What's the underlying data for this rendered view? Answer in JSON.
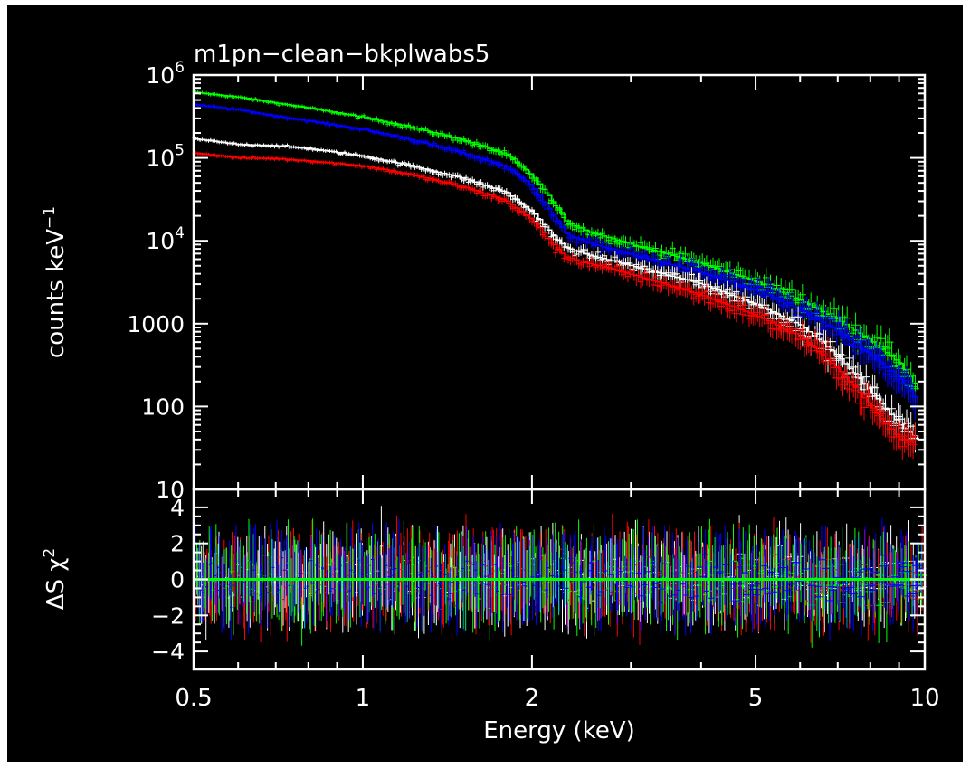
{
  "chart_data": {
    "type": "line",
    "title": "m1pn−clean−bkplwabs5",
    "xlabel": "Energy (keV)",
    "x_scale": "log",
    "xlim": [
      0.5,
      10
    ],
    "x_ticks": [
      {
        "v": 0.5,
        "label": "0.5"
      },
      {
        "v": 1,
        "label": "1"
      },
      {
        "v": 2,
        "label": "2"
      },
      {
        "v": 5,
        "label": "5"
      },
      {
        "v": 10,
        "label": "10"
      }
    ],
    "background_color": "#000000",
    "axis_color": "#ffffff",
    "panels": [
      {
        "id": "spectrum",
        "ylabel": "counts keV",
        "ylabel_exponent": "−1",
        "y_scale": "log",
        "ylim": [
          10,
          1000000
        ],
        "y_ticks": [
          {
            "v": 1000000,
            "label": "10",
            "sup": "6"
          },
          {
            "v": 100000,
            "label": "10",
            "sup": "5"
          },
          {
            "v": 10000,
            "label": "10",
            "sup": "4"
          },
          {
            "v": 1000,
            "label": "1000",
            "sup": ""
          },
          {
            "v": 100,
            "label": "100",
            "sup": ""
          },
          {
            "v": 10,
            "label": "10",
            "sup": ""
          }
        ],
        "x": [
          0.5,
          0.6,
          0.7,
          0.8,
          1.0,
          1.2,
          1.5,
          1.8,
          2.0,
          2.1,
          2.2,
          2.3,
          2.5,
          3.0,
          3.5,
          4.0,
          5.0,
          6.0,
          7.0,
          8.0,
          9.0,
          9.7
        ],
        "series": [
          {
            "color": "#00ff00",
            "values": [
              620000,
              540000,
              460000,
              400000,
              310000,
              240000,
              165000,
              110000,
              60000,
              40000,
              26000,
              17000,
              13000,
              9000,
              6800,
              5300,
              3200,
              1900,
              1100,
              620,
              330,
              160
            ]
          },
          {
            "color": "#0000ff",
            "values": [
              440000,
              380000,
              320000,
              280000,
              220000,
              170000,
              115000,
              78000,
              45000,
              28000,
              18000,
              12000,
              9500,
              6800,
              5200,
              4100,
              2500,
              1450,
              800,
              420,
              220,
              110
            ]
          },
          {
            "color": "#ffffff",
            "values": [
              170000,
              145000,
              140000,
              130000,
              105000,
              82000,
              57000,
              38000,
              22000,
              15000,
              10500,
              8200,
              6800,
              5000,
              3800,
              3000,
              1700,
              950,
              400,
              150,
              60,
              40
            ]
          },
          {
            "color": "#ff0000",
            "values": [
              115000,
              100000,
              98000,
              92000,
              80000,
              64000,
              45000,
              30000,
              17500,
              12000,
              8000,
              6300,
              5400,
              3900,
              2900,
              2200,
              1250,
              700,
              280,
              100,
              40,
              38
            ]
          }
        ]
      },
      {
        "id": "residuals",
        "ylabel": "ΔS χ",
        "ylabel_exponent": "2",
        "y_scale": "linear",
        "ylim": [
          -5,
          5
        ],
        "y_ticks": [
          {
            "v": 4,
            "label": "4",
            "sup": ""
          },
          {
            "v": 2,
            "label": "2",
            "sup": ""
          },
          {
            "v": 0,
            "label": "0",
            "sup": ""
          },
          {
            "v": -2,
            "label": "−2",
            "sup": ""
          },
          {
            "v": -4,
            "label": "−4",
            "sup": ""
          }
        ],
        "reference_line": {
          "y": 0,
          "color": "#00ff00"
        },
        "scatter_half_range": 2.2,
        "series": [
          {
            "color": "#ffffff"
          },
          {
            "color": "#ff0000"
          },
          {
            "color": "#00ff00"
          },
          {
            "color": "#0000ff"
          }
        ]
      }
    ]
  }
}
